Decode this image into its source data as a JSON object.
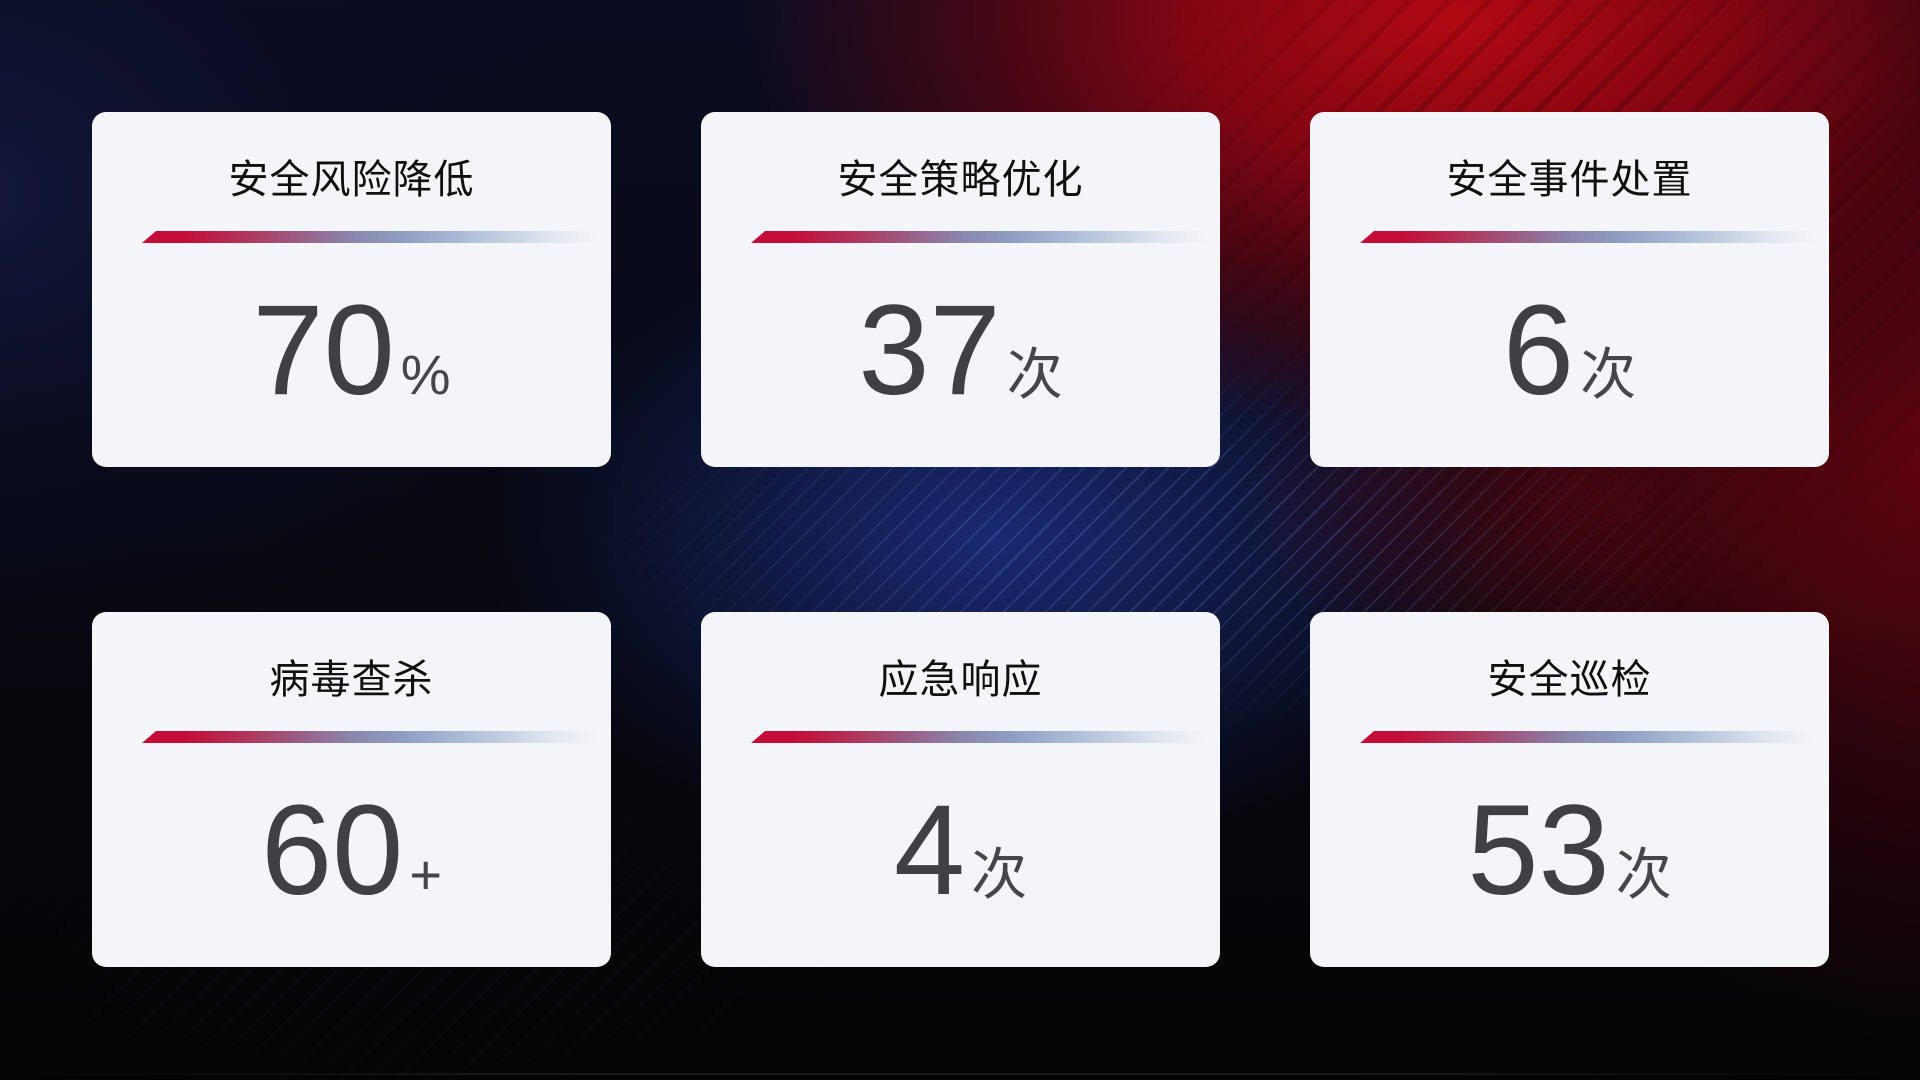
{
  "cards": [
    {
      "title": "安全风险降低",
      "value": "70",
      "suffix": "%"
    },
    {
      "title": "安全策略优化",
      "value": "37",
      "suffix": "次"
    },
    {
      "title": "安全事件处置",
      "value": "6",
      "suffix": "次"
    },
    {
      "title": "病毒查杀",
      "value": "60",
      "suffix": "+"
    },
    {
      "title": "应急响应",
      "value": "4",
      "suffix": "次"
    },
    {
      "title": "安全巡检",
      "value": "53",
      "suffix": "次"
    }
  ],
  "colors": {
    "card_background": "#f4f5f8",
    "title_text": "#101013",
    "number_text": "#3f4045",
    "divider_red": "#c30d39",
    "divider_blue": "#8f9dc3",
    "background_red_glow": "#ba0911",
    "background_navy": "#131c3c",
    "background_blue_glow": "#1b2d7e"
  }
}
